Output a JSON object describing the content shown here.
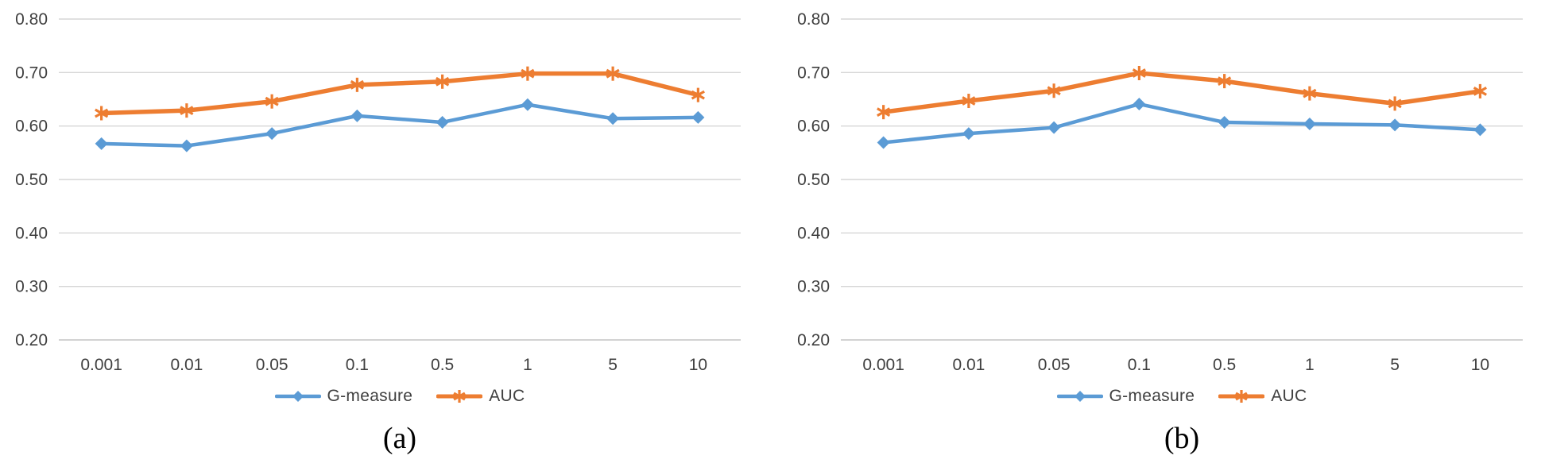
{
  "colors": {
    "g_measure": "#5B9BD5",
    "auc": "#ED7D31",
    "gridline": "#D6D6D6",
    "axis_line": "#C4C4C4",
    "tick_text": "#3F3F3F",
    "caption_text": "#000000",
    "background": "#FFFFFF"
  },
  "chart_data": [
    {
      "type": "line",
      "caption": "(a)",
      "categories": [
        "0.001",
        "0.01",
        "0.05",
        "0.1",
        "0.5",
        "1",
        "5",
        "10"
      ],
      "series": [
        {
          "name": "G-measure",
          "color": "#5B9BD5",
          "marker": "diamond",
          "values": [
            0.567,
            0.563,
            0.586,
            0.619,
            0.607,
            0.64,
            0.614,
            0.616
          ]
        },
        {
          "name": "AUC",
          "color": "#ED7D31",
          "marker": "star",
          "values": [
            0.624,
            0.629,
            0.646,
            0.677,
            0.683,
            0.698,
            0.698,
            0.658
          ]
        }
      ],
      "ylim": [
        0.2,
        0.8
      ],
      "ytick_step": 0.1,
      "ytick_labels": [
        "0.20",
        "0.30",
        "0.40",
        "0.50",
        "0.60",
        "0.70",
        "0.80"
      ],
      "grid": true,
      "legend_position": "bottom"
    },
    {
      "type": "line",
      "caption": "(b)",
      "categories": [
        "0.001",
        "0.01",
        "0.05",
        "0.1",
        "0.5",
        "1",
        "5",
        "10"
      ],
      "series": [
        {
          "name": "G-measure",
          "color": "#5B9BD5",
          "marker": "diamond",
          "values": [
            0.569,
            0.586,
            0.597,
            0.641,
            0.607,
            0.604,
            0.602,
            0.593
          ]
        },
        {
          "name": "AUC",
          "color": "#ED7D31",
          "marker": "star",
          "values": [
            0.626,
            0.647,
            0.666,
            0.699,
            0.684,
            0.661,
            0.642,
            0.665
          ]
        }
      ],
      "ylim": [
        0.2,
        0.8
      ],
      "ytick_step": 0.1,
      "ytick_labels": [
        "0.20",
        "0.30",
        "0.40",
        "0.50",
        "0.60",
        "0.70",
        "0.80"
      ],
      "grid": true,
      "legend_position": "bottom"
    }
  ]
}
